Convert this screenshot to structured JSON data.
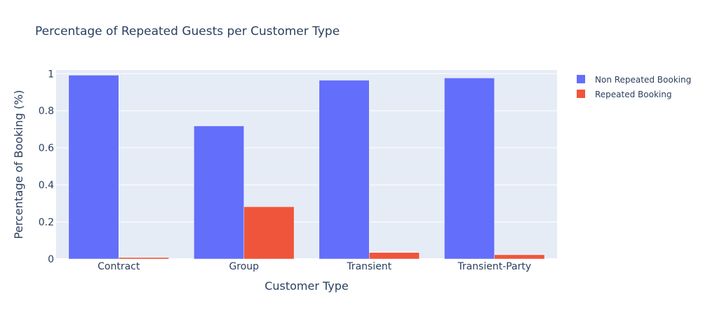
{
  "chart_data": {
    "type": "bar",
    "title": "Percentage of Repeated Guests per Customer Type",
    "xlabel": "Customer Type",
    "ylabel": "Percentage of Booking (%)",
    "categories": [
      "Contract",
      "Group",
      "Transient",
      "Transient-Party"
    ],
    "series": [
      {
        "name": "Non Repeated Booking",
        "color": "#636efa",
        "values": [
          0.992,
          0.718,
          0.965,
          0.977
        ]
      },
      {
        "name": "Repeated Booking",
        "color": "#ef553b",
        "values": [
          0.008,
          0.282,
          0.035,
          0.023
        ]
      }
    ],
    "ylim": [
      0,
      1.0
    ],
    "yticks": [
      0,
      0.2,
      0.4,
      0.6,
      0.8,
      1
    ],
    "ytick_labels": [
      "0",
      "0.2",
      "0.4",
      "0.6",
      "0.8",
      "1"
    ],
    "grid": true,
    "legend_position": "top-right",
    "plot_background": "#e5ecf6"
  }
}
